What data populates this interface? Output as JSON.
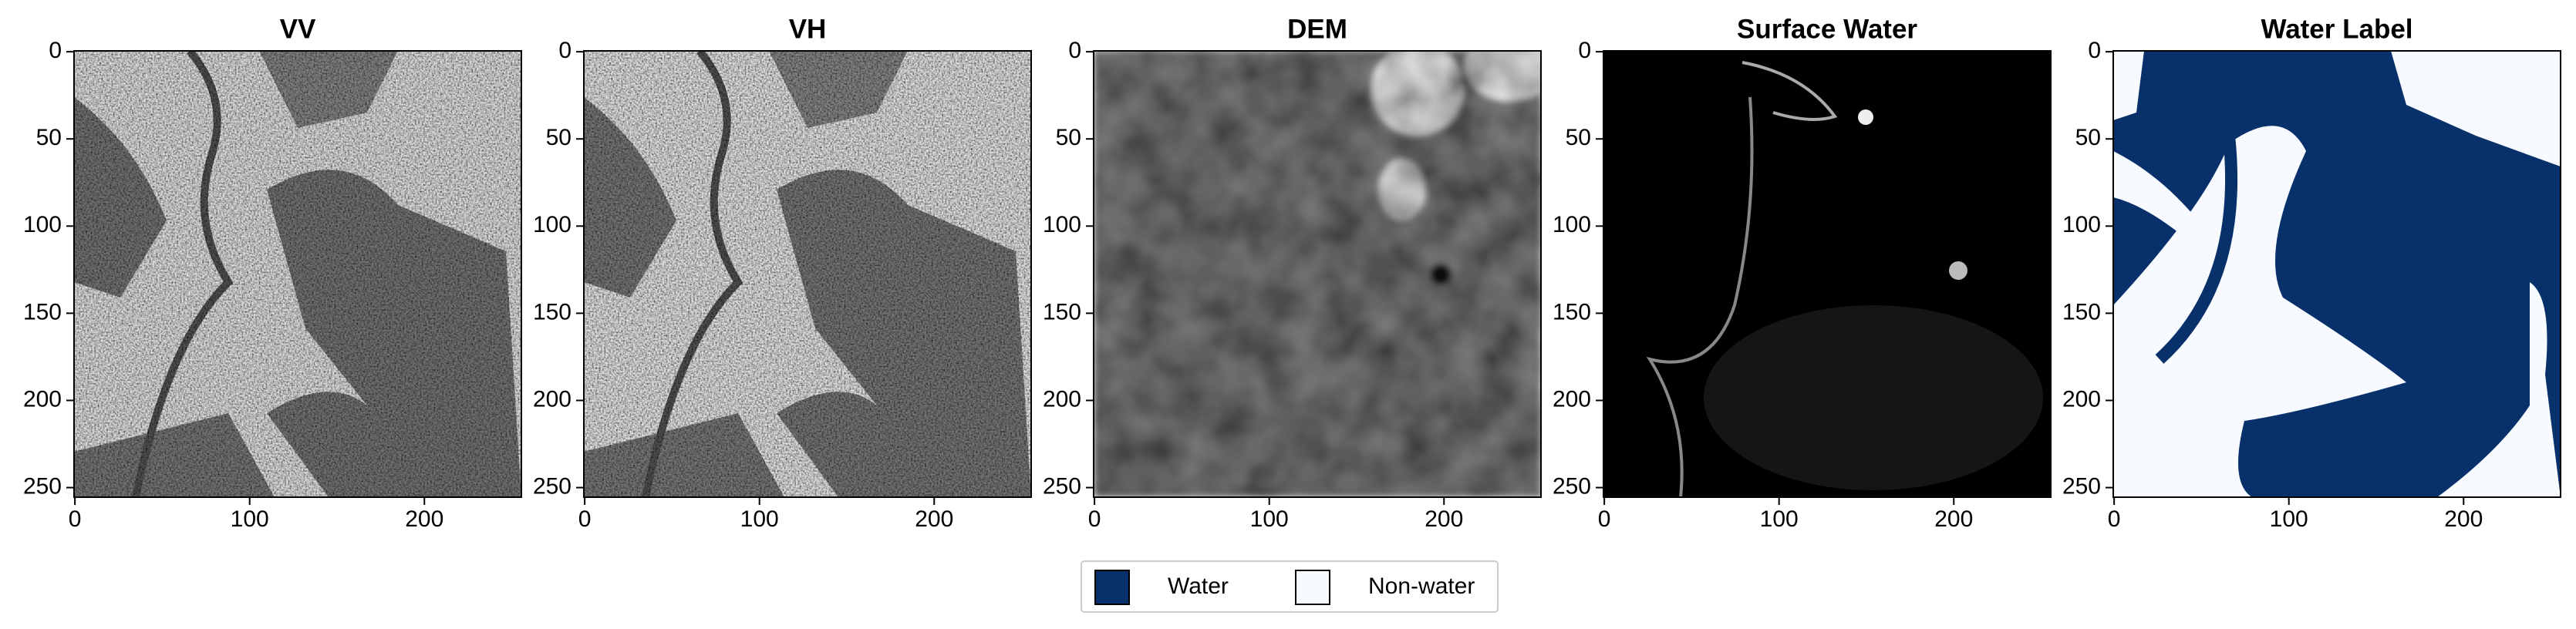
{
  "chart_data": [
    {
      "type": "image",
      "title": "VV",
      "xlim": [
        -0.5,
        255.5
      ],
      "ylim": [
        255.5,
        -0.5
      ],
      "xticks": [
        0,
        100,
        200
      ],
      "yticks": [
        0,
        50,
        100,
        150,
        200,
        250
      ]
    },
    {
      "type": "image",
      "title": "VH",
      "xlim": [
        -0.5,
        255.5
      ],
      "ylim": [
        255.5,
        -0.5
      ],
      "xticks": [
        0,
        100,
        200
      ],
      "yticks": [
        0,
        50,
        100,
        150,
        200,
        250
      ]
    },
    {
      "type": "image",
      "title": "DEM",
      "xlim": [
        -0.5,
        255.5
      ],
      "ylim": [
        255.5,
        -0.5
      ],
      "xticks": [
        0,
        100,
        200
      ],
      "yticks": [
        0,
        50,
        100,
        150,
        200,
        250
      ]
    },
    {
      "type": "image",
      "title": "Surface Water",
      "xlim": [
        -0.5,
        255.5
      ],
      "ylim": [
        255.5,
        -0.5
      ],
      "xticks": [
        0,
        100,
        200
      ],
      "yticks": [
        0,
        50,
        100,
        150,
        200,
        250
      ]
    },
    {
      "type": "image",
      "title": "Water Label",
      "xlim": [
        -0.5,
        255.5
      ],
      "ylim": [
        255.5,
        -0.5
      ],
      "xticks": [
        0,
        100,
        200
      ],
      "yticks": [
        0,
        50,
        100,
        150,
        200,
        250
      ]
    }
  ],
  "legend": {
    "items": [
      {
        "name": "Water",
        "color": "#08306b"
      },
      {
        "name": "Non-water",
        "color": "#f7fbff"
      }
    ]
  }
}
